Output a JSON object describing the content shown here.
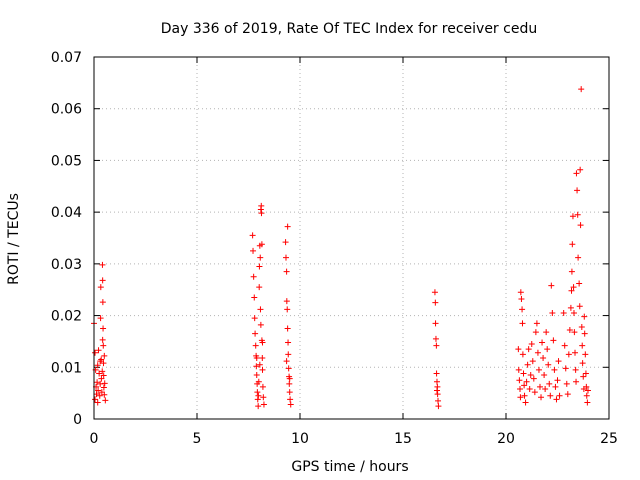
{
  "chart_data": {
    "type": "scatter",
    "title": "Day 336 of 2019, Rate Of TEC Index for receiver cedu",
    "xlabel": "GPS time / hours",
    "ylabel": "ROTI / TECUs",
    "xlim": [
      0,
      25
    ],
    "ylim": [
      0,
      0.07
    ],
    "x_ticks": [
      0,
      5,
      10,
      15,
      20,
      25
    ],
    "x_tick_labels": [
      "0",
      "5",
      "10",
      "15",
      "20",
      "25"
    ],
    "y_ticks": [
      0,
      0.01,
      0.02,
      0.03,
      0.04,
      0.05,
      0.06,
      0.07
    ],
    "y_tick_labels": [
      "0",
      "0.01",
      "0.02",
      "0.03",
      "0.04",
      "0.05",
      "0.06",
      "0.07"
    ],
    "grid": true,
    "marker": "plus",
    "series": [
      {
        "name": "ROTI",
        "color": "#ff0000",
        "points": [
          [
            0.0,
            0.0185
          ],
          [
            0.05,
            0.0128
          ],
          [
            0.08,
            0.0095
          ],
          [
            0.1,
            0.0062
          ],
          [
            0.12,
            0.0048
          ],
          [
            0.15,
            0.0071
          ],
          [
            0.18,
            0.0104
          ],
          [
            0.2,
            0.0055
          ],
          [
            0.22,
            0.0133
          ],
          [
            0.25,
            0.0088
          ],
          [
            0.28,
            0.0045
          ],
          [
            0.3,
            0.0068
          ],
          [
            0.32,
            0.0195
          ],
          [
            0.33,
            0.0255
          ],
          [
            0.35,
            0.0115
          ],
          [
            0.36,
            0.0078
          ],
          [
            0.38,
            0.0052
          ],
          [
            0.4,
            0.0092
          ],
          [
            0.41,
            0.0298
          ],
          [
            0.42,
            0.0268
          ],
          [
            0.43,
            0.0226
          ],
          [
            0.44,
            0.0175
          ],
          [
            0.45,
            0.0142
          ],
          [
            0.46,
            0.0108
          ],
          [
            0.47,
            0.0084
          ],
          [
            0.48,
            0.0061
          ],
          [
            0.5,
            0.0047
          ],
          [
            0.52,
            0.0069
          ],
          [
            0.55,
            0.0036
          ],
          [
            0.05,
            0.0038
          ],
          [
            0.18,
            0.0032
          ],
          [
            0.3,
            0.0112
          ],
          [
            0.42,
            0.0153
          ],
          [
            0.5,
            0.0122
          ],
          [
            7.7,
            0.0355
          ],
          [
            7.72,
            0.0325
          ],
          [
            7.75,
            0.0275
          ],
          [
            7.78,
            0.0235
          ],
          [
            7.8,
            0.0195
          ],
          [
            7.82,
            0.0165
          ],
          [
            7.85,
            0.0142
          ],
          [
            7.87,
            0.0122
          ],
          [
            7.88,
            0.0102
          ],
          [
            7.9,
            0.0085
          ],
          [
            7.92,
            0.0068
          ],
          [
            7.93,
            0.0052
          ],
          [
            7.95,
            0.0038
          ],
          [
            7.97,
            0.0025
          ],
          [
            7.98,
            0.0045
          ],
          [
            8.0,
            0.0072
          ],
          [
            8.02,
            0.0255
          ],
          [
            8.03,
            0.0295
          ],
          [
            8.05,
            0.0335
          ],
          [
            8.07,
            0.0312
          ],
          [
            8.08,
            0.0212
          ],
          [
            8.1,
            0.0182
          ],
          [
            8.1,
            0.0405
          ],
          [
            8.12,
            0.0412
          ],
          [
            8.13,
            0.0398
          ],
          [
            8.15,
            0.0338
          ],
          [
            8.15,
            0.0152
          ],
          [
            8.17,
            0.0118
          ],
          [
            8.18,
            0.0095
          ],
          [
            8.2,
            0.0062
          ],
          [
            8.22,
            0.0042
          ],
          [
            8.25,
            0.0028
          ],
          [
            7.9,
            0.0118
          ],
          [
            8.05,
            0.0105
          ],
          [
            8.18,
            0.0148
          ],
          [
            9.3,
            0.0342
          ],
          [
            9.32,
            0.0312
          ],
          [
            9.35,
            0.0285
          ],
          [
            9.36,
            0.0228
          ],
          [
            9.38,
            0.0212
          ],
          [
            9.4,
            0.0175
          ],
          [
            9.4,
            0.0372
          ],
          [
            9.42,
            0.0148
          ],
          [
            9.43,
            0.0125
          ],
          [
            9.45,
            0.0098
          ],
          [
            9.47,
            0.0082
          ],
          [
            9.48,
            0.0068
          ],
          [
            9.5,
            0.0052
          ],
          [
            9.52,
            0.0038
          ],
          [
            9.55,
            0.0028
          ],
          [
            9.35,
            0.0112
          ],
          [
            9.5,
            0.0078
          ],
          [
            16.55,
            0.0245
          ],
          [
            16.57,
            0.0225
          ],
          [
            16.58,
            0.0185
          ],
          [
            16.6,
            0.0155
          ],
          [
            16.62,
            0.0142
          ],
          [
            16.63,
            0.0088
          ],
          [
            16.65,
            0.0072
          ],
          [
            16.67,
            0.0062
          ],
          [
            16.68,
            0.0048
          ],
          [
            16.7,
            0.0035
          ],
          [
            16.72,
            0.0025
          ],
          [
            16.65,
            0.0055
          ],
          [
            20.6,
            0.0135
          ],
          [
            20.62,
            0.0095
          ],
          [
            20.65,
            0.0075
          ],
          [
            20.68,
            0.0058
          ],
          [
            20.7,
            0.0042
          ],
          [
            20.72,
            0.0245
          ],
          [
            20.75,
            0.0232
          ],
          [
            20.78,
            0.0212
          ],
          [
            20.8,
            0.0185
          ],
          [
            20.82,
            0.0125
          ],
          [
            20.85,
            0.0088
          ],
          [
            20.88,
            0.0065
          ],
          [
            20.9,
            0.0045
          ],
          [
            20.95,
            0.0032
          ],
          [
            21.0,
            0.0072
          ],
          [
            21.05,
            0.0105
          ],
          [
            21.1,
            0.0135
          ],
          [
            21.15,
            0.0058
          ],
          [
            21.2,
            0.0085
          ],
          [
            21.25,
            0.0145
          ],
          [
            21.3,
            0.0112
          ],
          [
            21.35,
            0.0078
          ],
          [
            21.4,
            0.0052
          ],
          [
            21.45,
            0.0168
          ],
          [
            21.5,
            0.0185
          ],
          [
            21.55,
            0.0128
          ],
          [
            21.6,
            0.0095
          ],
          [
            21.65,
            0.0062
          ],
          [
            21.7,
            0.0042
          ],
          [
            21.75,
            0.0148
          ],
          [
            21.8,
            0.0118
          ],
          [
            21.85,
            0.0085
          ],
          [
            21.9,
            0.0058
          ],
          [
            21.95,
            0.0168
          ],
          [
            22.0,
            0.0135
          ],
          [
            22.05,
            0.0105
          ],
          [
            22.1,
            0.0068
          ],
          [
            22.15,
            0.0045
          ],
          [
            22.2,
            0.0258
          ],
          [
            22.25,
            0.0205
          ],
          [
            22.3,
            0.0152
          ],
          [
            22.35,
            0.0095
          ],
          [
            22.4,
            0.0062
          ],
          [
            22.45,
            0.0038
          ],
          [
            22.5,
            0.0075
          ],
          [
            22.55,
            0.0112
          ],
          [
            22.6,
            0.0045
          ],
          [
            22.8,
            0.0205
          ],
          [
            22.85,
            0.0142
          ],
          [
            22.9,
            0.0098
          ],
          [
            22.95,
            0.0068
          ],
          [
            23.0,
            0.0048
          ],
          [
            23.05,
            0.0125
          ],
          [
            23.1,
            0.0172
          ],
          [
            23.15,
            0.0215
          ],
          [
            23.18,
            0.0248
          ],
          [
            23.2,
            0.0285
          ],
          [
            23.22,
            0.0338
          ],
          [
            23.25,
            0.0392
          ],
          [
            23.28,
            0.0255
          ],
          [
            23.3,
            0.0205
          ],
          [
            23.32,
            0.0168
          ],
          [
            23.35,
            0.0128
          ],
          [
            23.38,
            0.0095
          ],
          [
            23.4,
            0.0072
          ],
          [
            23.42,
            0.0475
          ],
          [
            23.45,
            0.0442
          ],
          [
            23.48,
            0.0395
          ],
          [
            23.5,
            0.0312
          ],
          [
            23.55,
            0.0262
          ],
          [
            23.58,
            0.0218
          ],
          [
            23.6,
            0.0482
          ],
          [
            23.62,
            0.0375
          ],
          [
            23.65,
            0.0638
          ],
          [
            23.68,
            0.0178
          ],
          [
            23.7,
            0.0142
          ],
          [
            23.72,
            0.0108
          ],
          [
            23.75,
            0.0082
          ],
          [
            23.78,
            0.0058
          ],
          [
            23.8,
            0.0198
          ],
          [
            23.82,
            0.0165
          ],
          [
            23.85,
            0.0125
          ],
          [
            23.88,
            0.0088
          ],
          [
            23.9,
            0.0062
          ],
          [
            23.92,
            0.0045
          ],
          [
            23.95,
            0.0032
          ],
          [
            23.98,
            0.0055
          ]
        ]
      }
    ]
  }
}
